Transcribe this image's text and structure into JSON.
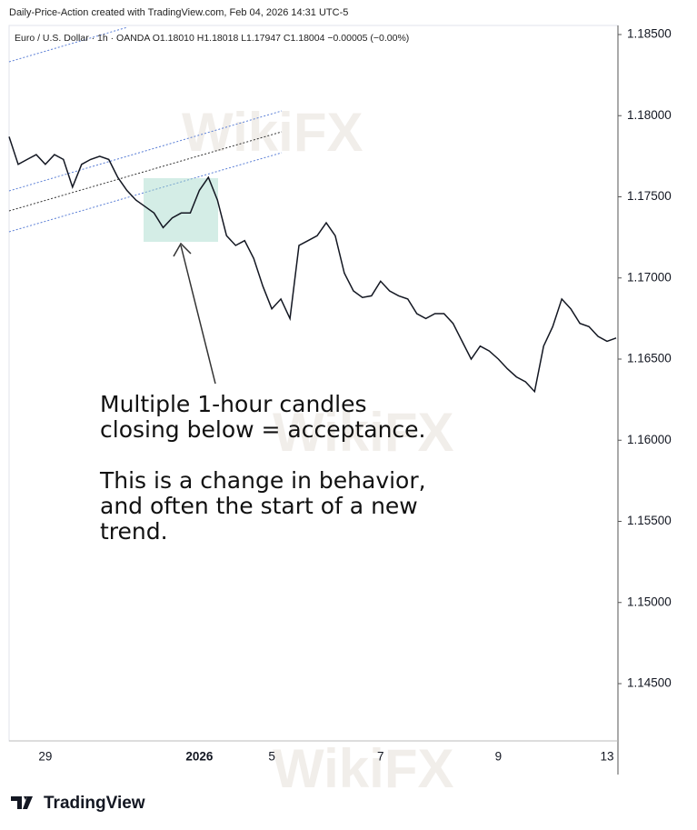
{
  "chart_data": {
    "type": "line",
    "title": "Daily-Price-Action created with TradingView.com, Feb 04, 2026 14:31 UTC-5",
    "subtitle": "Euro / U.S. Dollar · 1h · OANDA  O1.18010  H1.18018  L1.17947  C1.18004  −0.00005 (−0.00%)",
    "brand": "TradingView",
    "watermark": "WikiFX",
    "annotations": [
      "Multiple 1-hour candles",
      "closing below = acceptance.",
      "This is a change in behavior,",
      "and often the start of a new",
      "trend."
    ],
    "categories": [
      null,
      null,
      null,
      null,
      "29",
      null,
      null,
      null,
      null,
      null,
      null,
      null,
      null,
      null,
      null,
      null,
      null,
      null,
      null,
      null,
      null,
      "2026",
      null,
      null,
      null,
      null,
      null,
      null,
      null,
      "5",
      null,
      null,
      null,
      null,
      null,
      null,
      null,
      null,
      null,
      null,
      null,
      "7",
      null,
      null,
      null,
      null,
      null,
      null,
      null,
      null,
      null,
      null,
      null,
      null,
      "9",
      null,
      null,
      null,
      null,
      null,
      null,
      null,
      null,
      null,
      null,
      null,
      "13",
      null
    ],
    "series": [
      {
        "name": "EUR/USD",
        "color": "#131722",
        "values": [
          1.1787,
          1.177,
          1.1773,
          1.1776,
          1.177,
          1.1776,
          1.1773,
          1.1756,
          1.177,
          1.1773,
          1.1775,
          1.1773,
          1.1762,
          1.1754,
          1.1748,
          1.1744,
          1.174,
          1.1731,
          1.1737,
          1.174,
          1.174,
          1.1754,
          1.1762,
          1.1748,
          1.1726,
          1.172,
          1.1723,
          1.1712,
          1.1695,
          1.1681,
          1.1687,
          1.1675,
          1.172,
          1.1723,
          1.1726,
          1.1734,
          1.1726,
          1.1703,
          1.1692,
          1.1688,
          1.1689,
          1.1698,
          1.1692,
          1.1689,
          1.1687,
          1.1678,
          1.1675,
          1.1678,
          1.1678,
          1.1672,
          1.1661,
          1.165,
          1.1658,
          1.1655,
          1.165,
          1.1644,
          1.1639,
          1.1636,
          1.163,
          1.1658,
          1.167,
          1.1687,
          1.1681,
          1.1672,
          1.167,
          1.1664,
          1.1661,
          1.1663
        ]
      }
    ],
    "ylim": [
      1.14147,
      1.18556
    ],
    "yticks": [
      {
        "value": 1.145,
        "label": "1.14500"
      },
      {
        "value": 1.15,
        "label": "1.15000"
      },
      {
        "value": 1.155,
        "label": "1.15500"
      },
      {
        "value": 1.16,
        "label": "1.16000"
      },
      {
        "value": 1.165,
        "label": "1.16500"
      },
      {
        "value": 1.17,
        "label": "1.17000"
      },
      {
        "value": 1.175,
        "label": "1.17500"
      },
      {
        "value": 1.18,
        "label": "1.18000"
      },
      {
        "value": 1.185,
        "label": "1.18500"
      }
    ],
    "grid": false
  }
}
